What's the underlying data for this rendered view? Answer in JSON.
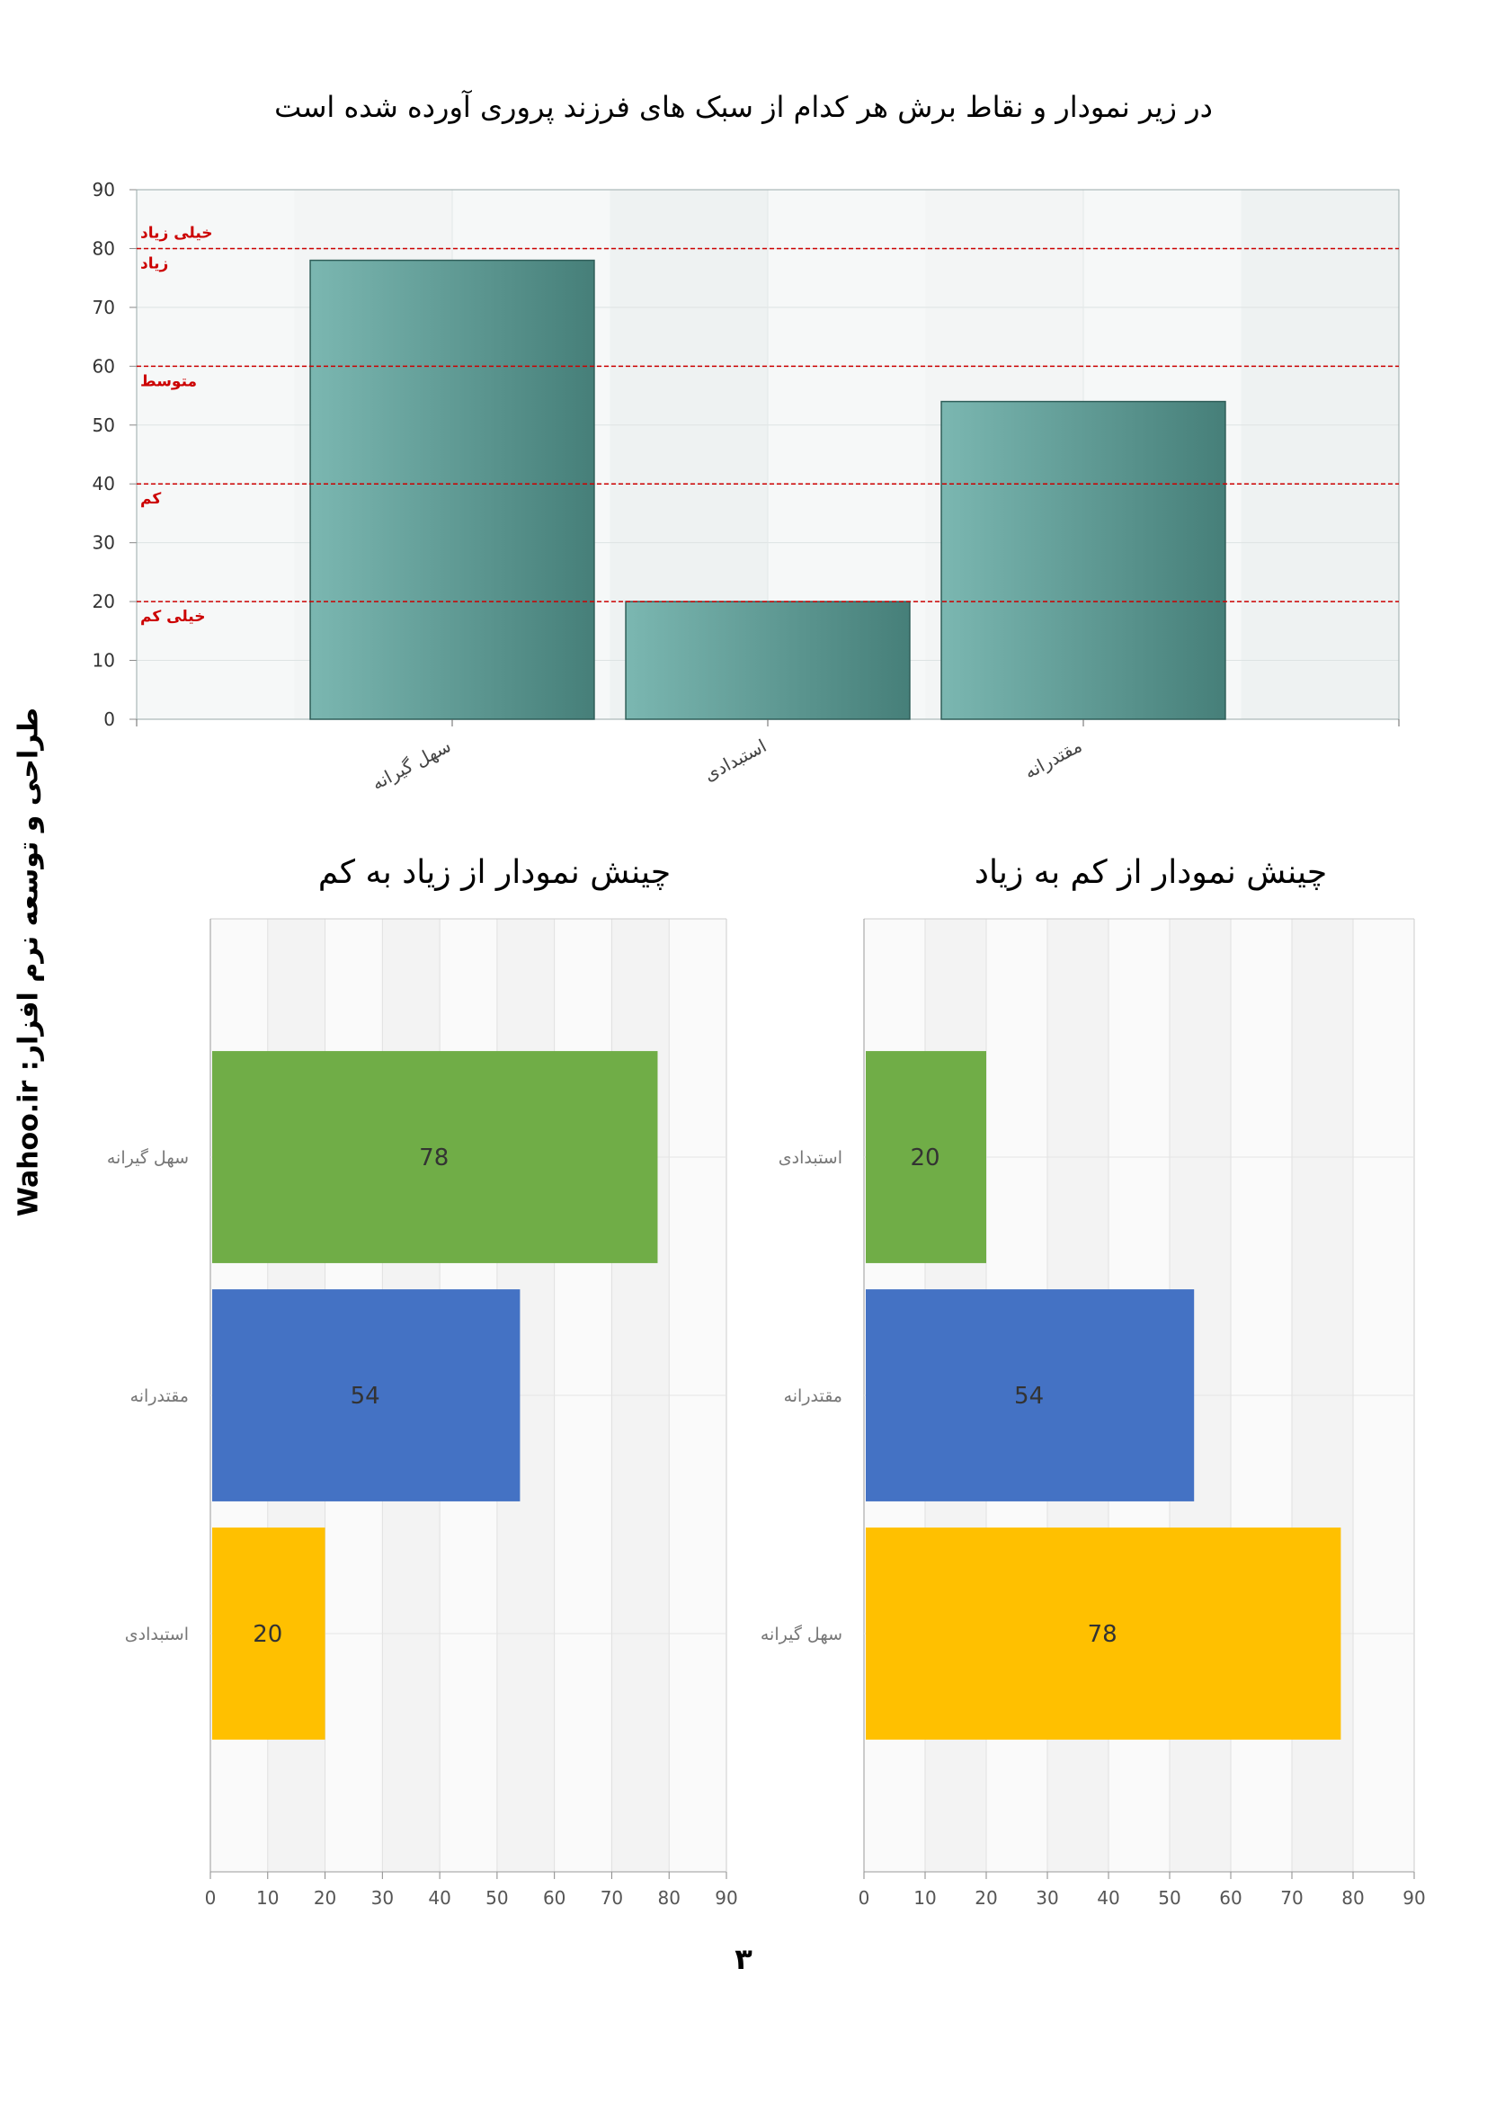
{
  "page_title": "در زیر نمودار و نقاط برش هر کدام از سبک های فرزند پروری آورده شده است",
  "side_text": "طراحی و توسعه نرم افزار:      Wahoo.ir",
  "page_number": "۳",
  "colors": {
    "bar_teal_light": "#7bb7b1",
    "bar_teal_dark": "#467f79",
    "cut_line": "#cc0000",
    "green": "#70ad47",
    "blue": "#4472c4",
    "yellow": "#ffc000",
    "grid": "#dddddd"
  },
  "chart_data": [
    {
      "type": "bar",
      "title": "",
      "categories": [
        "سهل گیرانه",
        "استبدادی",
        "مقتدرانه"
      ],
      "values": [
        78,
        20,
        54
      ],
      "ylim": [
        0,
        90
      ],
      "yticks": [
        0,
        10,
        20,
        30,
        40,
        50,
        60,
        70,
        80,
        90
      ],
      "grid": true,
      "cut_points": [
        {
          "value": 80,
          "label": "خیلی زیاد",
          "label_side": "above"
        },
        {
          "value": 80,
          "label": "زیاد",
          "label_side": "below"
        },
        {
          "value": 60,
          "label": "متوسط",
          "label_side": "below"
        },
        {
          "value": 40,
          "label": "کم",
          "label_side": "below"
        },
        {
          "value": 20,
          "label": "خیلی کم",
          "label_side": "below"
        }
      ]
    },
    {
      "type": "bar",
      "orientation": "horizontal",
      "title": "چینش نمودار از زیاد به کم",
      "categories": [
        "سهل گیرانه",
        "مقتدرانه",
        "استبدادی"
      ],
      "values": [
        78,
        54,
        20
      ],
      "bar_colors": [
        "#70ad47",
        "#4472c4",
        "#ffc000"
      ],
      "xlim": [
        0,
        90
      ],
      "xticks": [
        0,
        10,
        20,
        30,
        40,
        50,
        60,
        70,
        80,
        90
      ],
      "grid": true
    },
    {
      "type": "bar",
      "orientation": "horizontal",
      "title": "چینش نمودار از کم به زیاد",
      "categories": [
        "استبدادی",
        "مقتدرانه",
        "سهل گیرانه"
      ],
      "values": [
        20,
        54,
        78
      ],
      "bar_colors": [
        "#70ad47",
        "#4472c4",
        "#ffc000"
      ],
      "xlim": [
        0,
        90
      ],
      "xticks": [
        0,
        10,
        20,
        30,
        40,
        50,
        60,
        70,
        80,
        90
      ],
      "grid": true
    }
  ]
}
